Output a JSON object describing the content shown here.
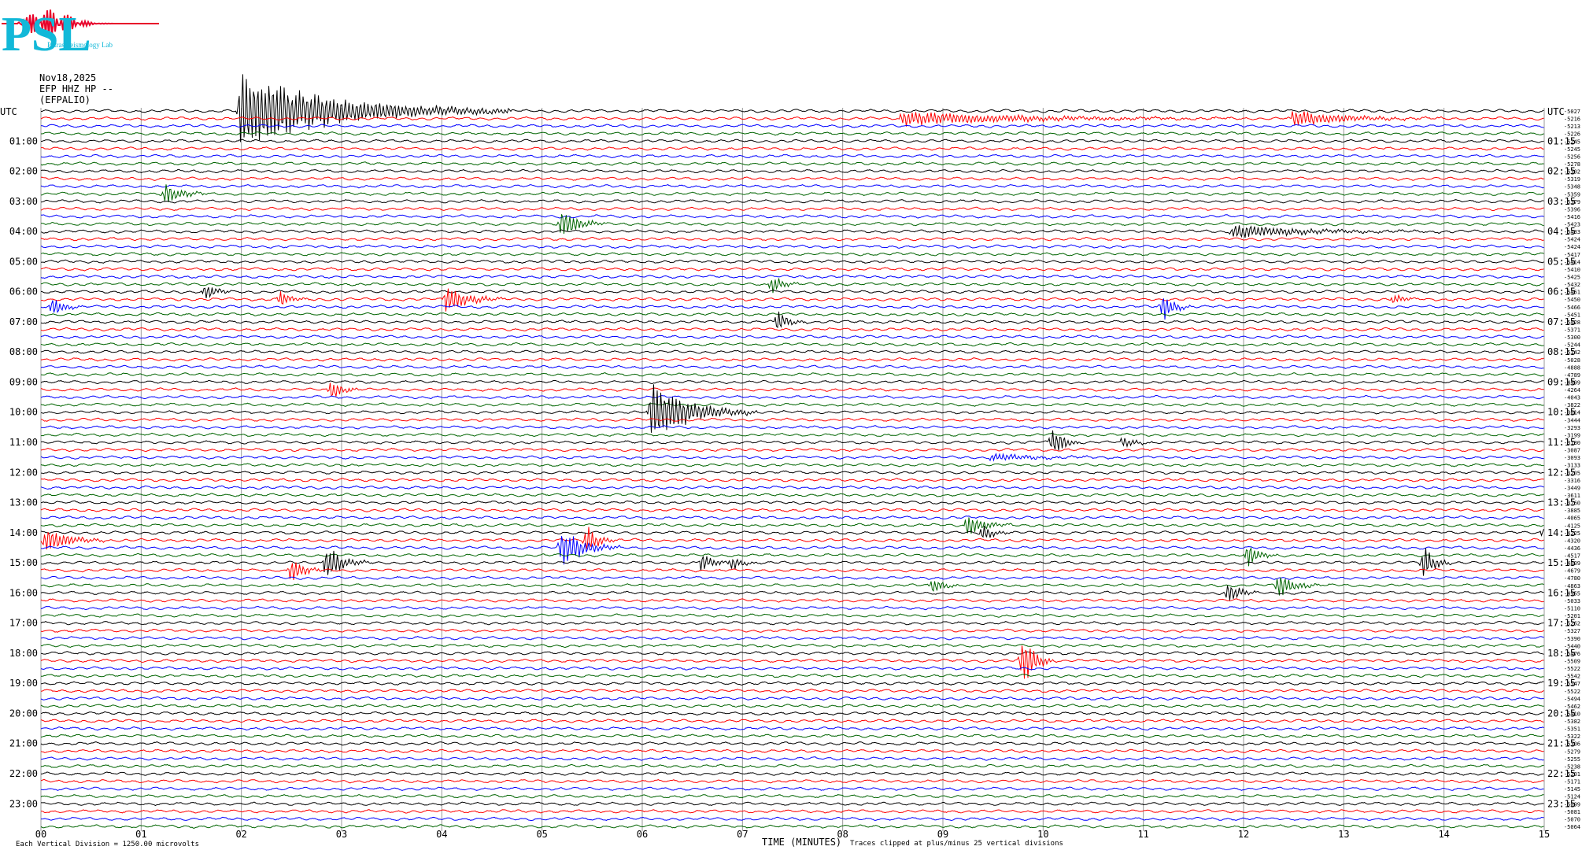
{
  "logo": {
    "text": "PSL",
    "subtitle": "Patras Seismology Lab",
    "colors": {
      "letters": "#12b8d8",
      "trace": "#e8002a"
    }
  },
  "header": {
    "date": "Nov18,2025",
    "station": "EFP HHZ HP --",
    "station_name": "(EFPALIO)"
  },
  "left_axis_label": "UTC",
  "right_axis_label": "UTC",
  "left_hours": [
    "01:00",
    "02:00",
    "03:00",
    "04:00",
    "05:00",
    "06:00",
    "07:00",
    "08:00",
    "09:00",
    "10:00",
    "11:00",
    "12:00",
    "13:00",
    "14:00",
    "15:00",
    "16:00",
    "17:00",
    "18:00",
    "19:00",
    "20:00",
    "21:00",
    "22:00",
    "23:00"
  ],
  "right_hours": [
    "01:15",
    "02:15",
    "03:15",
    "04:15",
    "05:15",
    "06:15",
    "07:15",
    "08:15",
    "09:15",
    "10:15",
    "11:15",
    "12:15",
    "13:15",
    "14:15",
    "15:15",
    "16:15",
    "17:15",
    "18:15",
    "19:15",
    "20:15",
    "21:15",
    "22:15",
    "23:15"
  ],
  "footer": {
    "division_note": "Each Vertical Division = 1250.00 microvolts",
    "axis_title": "TIME (MINUTES)",
    "clip_note": "Traces clipped at plus/minus 25 vertical divisions"
  },
  "chart_data": {
    "type": "line",
    "description_free": true,
    "x_unit": "minutes",
    "xlim": [
      0,
      15
    ],
    "x_ticks": [
      "00",
      "01",
      "02",
      "03",
      "04",
      "05",
      "06",
      "07",
      "08",
      "09",
      "10",
      "11",
      "12",
      "13",
      "14",
      "15"
    ],
    "trace_minutes": 15,
    "trace_count": 96,
    "trace_colors": [
      "#000000",
      "#ff0000",
      "#0000ff",
      "#006400"
    ],
    "trace_offsets": [
      "-5027",
      "-5216",
      "-5213",
      "-5226",
      "-5245",
      "-5245",
      "-5256",
      "-5278",
      "-5302",
      "-5319",
      "-5348",
      "-5359",
      "-5379",
      "-5396",
      "-5416",
      "-5423",
      "-5433",
      "-5424",
      "-5424",
      "-5417",
      "-5414",
      "-5410",
      "-5425",
      "-5432",
      "-5451",
      "-5450",
      "-5466",
      "-5451",
      "-5428",
      "-5371",
      "-5300",
      "-5244",
      "-5142",
      "-5028",
      "-4888",
      "-4789",
      "-4499",
      "-4264",
      "-4043",
      "-3822",
      "-3614",
      "-3444",
      "-3293",
      "-3199",
      "-3130",
      "-3087",
      "-3093",
      "-3133",
      "-3205",
      "-3316",
      "-3449",
      "-3611",
      "-3760",
      "-3885",
      "-4065",
      "-4125",
      "-4225",
      "-4320",
      "-4436",
      "-4517",
      "-4609",
      "-4679",
      "-4780",
      "-4863",
      "-4955",
      "-5033",
      "-5110",
      "-5201",
      "-5262",
      "-5327",
      "-5390",
      "-5440",
      "-5476",
      "-5509",
      "-5522",
      "-5542",
      "-5547",
      "-5522",
      "-5494",
      "-5462",
      "-5410",
      "-5382",
      "-5351",
      "-5322",
      "-5306",
      "-5279",
      "-5255",
      "-5238",
      "-5201",
      "-5171",
      "-5145",
      "-5124",
      "-5099",
      "-5081",
      "-5070",
      "-5064"
    ],
    "events": [
      {
        "trace": 0,
        "minute": 2.0,
        "amp": 5.5,
        "dur": 0.9,
        "color": "#000000"
      },
      {
        "trace": 1,
        "minute": 8.6,
        "amp": 1.0,
        "dur": 1.2,
        "color": "#ff0000"
      },
      {
        "trace": 1,
        "minute": 12.5,
        "amp": 1.2,
        "dur": 0.5,
        "color": "#ff0000"
      },
      {
        "trace": 11,
        "minute": 1.25,
        "amp": 1.6,
        "dur": 0.15,
        "color": "#006400"
      },
      {
        "trace": 15,
        "minute": 5.2,
        "amp": 2.2,
        "dur": 0.15,
        "color": "#006400"
      },
      {
        "trace": 16,
        "minute": 11.9,
        "amp": 1.0,
        "dur": 0.7,
        "color": "#000000"
      },
      {
        "trace": 24,
        "minute": 1.65,
        "amp": 1.3,
        "dur": 0.1,
        "color": "#000000"
      },
      {
        "trace": 25,
        "minute": 2.4,
        "amp": 1.3,
        "dur": 0.1,
        "color": "#ff0000"
      },
      {
        "trace": 25,
        "minute": 4.05,
        "amp": 2.0,
        "dur": 0.2,
        "color": "#ff0000"
      },
      {
        "trace": 26,
        "minute": 0.12,
        "amp": 1.5,
        "dur": 0.1,
        "color": "#0000ff"
      },
      {
        "trace": 23,
        "minute": 7.3,
        "amp": 1.4,
        "dur": 0.1,
        "color": "#006400"
      },
      {
        "trace": 26,
        "minute": 11.2,
        "amp": 2.0,
        "dur": 0.1,
        "color": "#0000ff"
      },
      {
        "trace": 25,
        "minute": 13.5,
        "amp": 0.8,
        "dur": 0.1,
        "color": "#ff0000"
      },
      {
        "trace": 28,
        "minute": 7.35,
        "amp": 1.6,
        "dur": 0.1,
        "color": "#000000"
      },
      {
        "trace": 37,
        "minute": 2.9,
        "amp": 1.6,
        "dur": 0.1,
        "color": "#0000ff"
      },
      {
        "trace": 40,
        "minute": 6.1,
        "amp": 4.5,
        "dur": 0.35,
        "color": "#000000"
      },
      {
        "trace": 44,
        "minute": 10.1,
        "amp": 2.2,
        "dur": 0.1,
        "color": "#000000"
      },
      {
        "trace": 44,
        "minute": 10.8,
        "amp": 1.0,
        "dur": 0.1,
        "color": "#006400"
      },
      {
        "trace": 46,
        "minute": 9.5,
        "amp": 0.6,
        "dur": 0.4,
        "color": "#0000ff"
      },
      {
        "trace": 55,
        "minute": 9.25,
        "amp": 1.8,
        "dur": 0.15,
        "color": "#006400"
      },
      {
        "trace": 57,
        "minute": 0.05,
        "amp": 2.0,
        "dur": 0.2,
        "color": "#0000ff"
      },
      {
        "trace": 56,
        "minute": 9.4,
        "amp": 1.2,
        "dur": 0.1,
        "color": "#ff0000"
      },
      {
        "trace": 56,
        "minute": 15.0,
        "amp": 1.2,
        "dur": 0.15,
        "color": "#ff0000"
      },
      {
        "trace": 58,
        "minute": 5.2,
        "amp": 3.0,
        "dur": 0.2,
        "color": "#006400"
      },
      {
        "trace": 57,
        "minute": 5.45,
        "amp": 2.2,
        "dur": 0.1,
        "color": "#0000ff"
      },
      {
        "trace": 61,
        "minute": 2.5,
        "amp": 2.2,
        "dur": 0.1,
        "color": "#0000ff"
      },
      {
        "trace": 60,
        "minute": 2.85,
        "amp": 2.5,
        "dur": 0.15,
        "color": "#ff0000"
      },
      {
        "trace": 60,
        "minute": 6.6,
        "amp": 1.5,
        "dur": 0.1,
        "color": "#ff0000"
      },
      {
        "trace": 60,
        "minute": 6.9,
        "amp": 1.0,
        "dur": 0.1,
        "color": "#ff0000"
      },
      {
        "trace": 63,
        "minute": 8.9,
        "amp": 1.2,
        "dur": 0.1,
        "color": "#006400"
      },
      {
        "trace": 59,
        "minute": 12.05,
        "amp": 1.8,
        "dur": 0.1,
        "color": "#000000"
      },
      {
        "trace": 63,
        "minute": 12.35,
        "amp": 1.8,
        "dur": 0.15,
        "color": "#006400"
      },
      {
        "trace": 64,
        "minute": 11.85,
        "amp": 1.8,
        "dur": 0.1,
        "color": "#000000"
      },
      {
        "trace": 60,
        "minute": 13.8,
        "amp": 2.5,
        "dur": 0.1,
        "color": "#ff0000"
      },
      {
        "trace": 73,
        "minute": 9.8,
        "amp": 4.5,
        "dur": 0.1,
        "color": "#ff0000"
      }
    ]
  }
}
